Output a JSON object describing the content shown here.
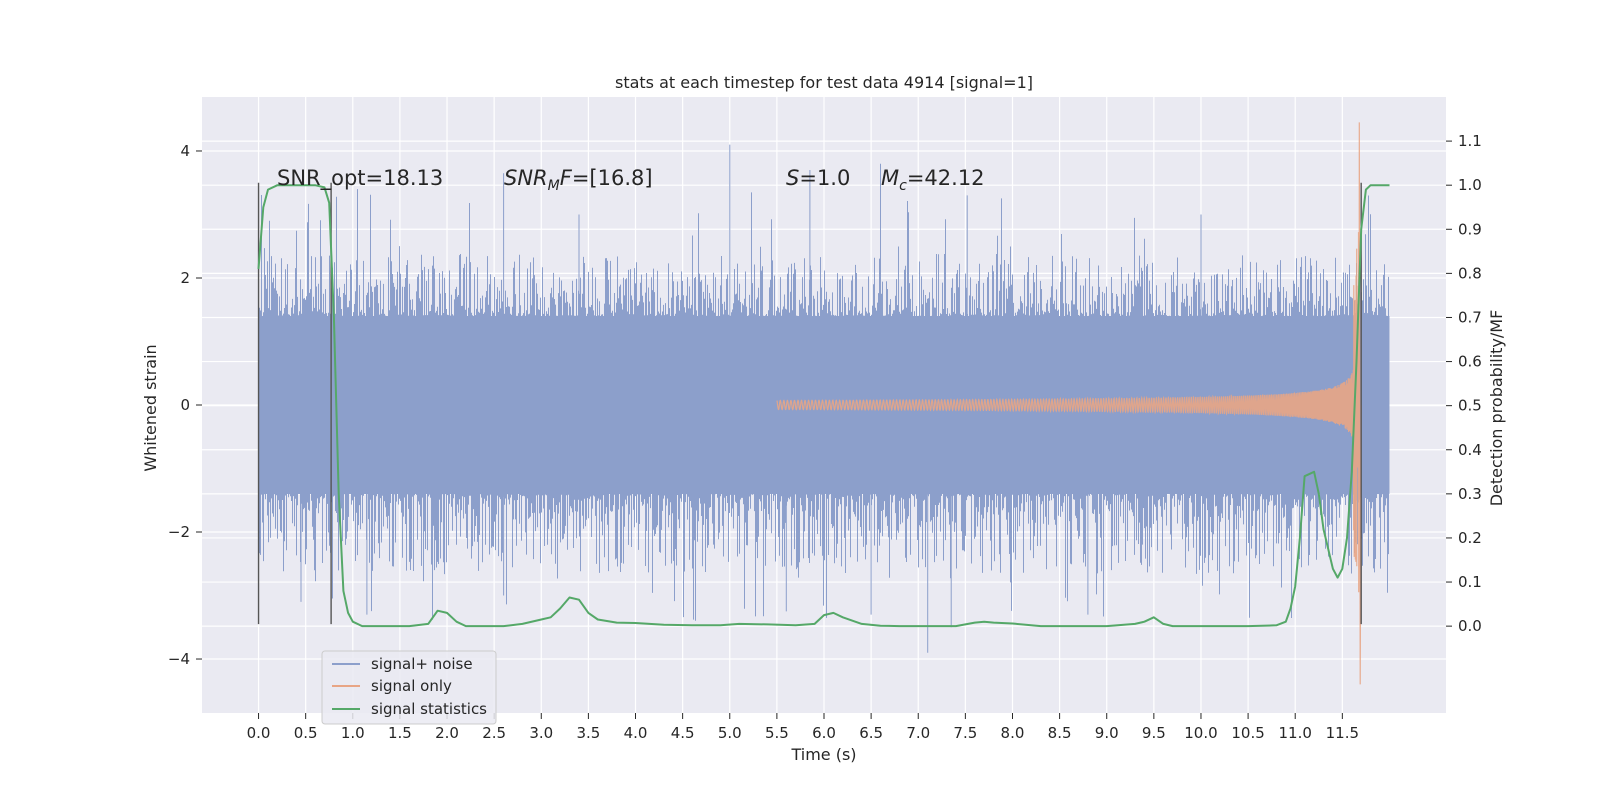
{
  "chart_data": {
    "type": "line",
    "title": "stats at each timestep for test data 4914 [signal=1]",
    "xlabel": "Time (s)",
    "ylabel": "Whitened strain",
    "y2label": "Detection probability/MF",
    "xlim": [
      -0.6,
      12.6
    ],
    "ylim": [
      -4.85,
      4.85
    ],
    "y2lim": [
      -0.197,
      1.2
    ],
    "x_ticks": [
      "0.0",
      "0.5",
      "1.0",
      "1.5",
      "2.0",
      "2.5",
      "3.0",
      "3.5",
      "4.0",
      "4.5",
      "5.0",
      "5.5",
      "6.0",
      "6.5",
      "7.0",
      "7.5",
      "8.0",
      "8.5",
      "9.0",
      "9.5",
      "10.0",
      "10.5",
      "11.0",
      "11.5"
    ],
    "y_ticks": [
      "4",
      "2",
      "0",
      "−2",
      "−4"
    ],
    "y2_ticks": [
      "1.1",
      "1.0",
      "0.9",
      "0.8",
      "0.7",
      "0.6",
      "0.5",
      "0.4",
      "0.3",
      "0.2",
      "0.1",
      "0.0"
    ],
    "grid": true,
    "legend_position": "lower-left",
    "legend": [
      "signal+ noise",
      "signal only",
      "signal statistics"
    ],
    "annotations": {
      "snr_opt": "SNR_opt=18.13",
      "snr_mf": "[16.8]",
      "s_value": "=1.0",
      "mc_value": "=42.12",
      "snr_mf_symbol": "SNR",
      "snr_mf_sub": "M",
      "snr_mf_tail": "F=",
      "s_symbol": "S",
      "mc_symbol": "M",
      "mc_sub": "c"
    },
    "vertical_markers": [
      0.0,
      0.77,
      11.7
    ],
    "colors": {
      "noise": "#8c9fcb",
      "signal": "#dd8452",
      "stats": "#55a868",
      "marker": "#555555",
      "background": "#eaeaf2",
      "grid": "#ffffff"
    },
    "series": [
      {
        "name": "signal+ noise",
        "description": "noisy whitened strain, roughly symmetric around 0",
        "envelope": {
          "x": [
            0.0,
            12.0
          ],
          "upper": 2.1,
          "lower": -2.3,
          "core": 1.4,
          "max": 4.1,
          "min": -3.9
        },
        "t_range": [
          0.0,
          12.0
        ]
      },
      {
        "name": "signal only",
        "description": "chirp growing toward merger",
        "t_range": [
          5.5,
          11.68
        ],
        "merger_time": 11.68,
        "peak": 4.45,
        "min": -4.4
      },
      {
        "name": "signal statistics",
        "axis": "right",
        "x": [
          0.0,
          0.05,
          0.1,
          0.2,
          0.3,
          0.45,
          0.6,
          0.7,
          0.75,
          0.8,
          0.85,
          0.9,
          0.95,
          1.0,
          1.1,
          1.3,
          1.6,
          1.8,
          1.9,
          2.0,
          2.1,
          2.2,
          2.4,
          2.6,
          2.8,
          3.0,
          3.1,
          3.2,
          3.3,
          3.4,
          3.5,
          3.6,
          3.8,
          4.0,
          4.3,
          4.6,
          4.9,
          5.1,
          5.4,
          5.7,
          5.9,
          6.0,
          6.1,
          6.2,
          6.4,
          6.6,
          6.8,
          7.0,
          7.2,
          7.4,
          7.6,
          7.7,
          7.8,
          8.0,
          8.3,
          8.6,
          9.0,
          9.3,
          9.4,
          9.5,
          9.6,
          9.7,
          9.9,
          10.2,
          10.5,
          10.8,
          10.9,
          10.95,
          11.0,
          11.05,
          11.1,
          11.2,
          11.25,
          11.3,
          11.4,
          11.45,
          11.5,
          11.55,
          11.6,
          11.65,
          11.7,
          11.75,
          11.8,
          11.9,
          12.0
        ],
        "y": [
          0.81,
          0.95,
          0.99,
          1.0,
          1.0,
          1.0,
          1.0,
          0.995,
          0.96,
          0.7,
          0.3,
          0.08,
          0.03,
          0.01,
          0.0,
          0.0,
          0.0,
          0.005,
          0.035,
          0.03,
          0.01,
          0.0,
          0.0,
          0.0,
          0.005,
          0.015,
          0.02,
          0.04,
          0.065,
          0.06,
          0.03,
          0.015,
          0.008,
          0.007,
          0.003,
          0.002,
          0.002,
          0.005,
          0.004,
          0.002,
          0.005,
          0.025,
          0.03,
          0.02,
          0.005,
          0.001,
          0.0,
          0.0,
          0.0,
          0.0,
          0.008,
          0.01,
          0.008,
          0.006,
          0.0,
          0.0,
          0.0,
          0.005,
          0.01,
          0.02,
          0.005,
          0.0,
          0.0,
          0.0,
          0.0,
          0.002,
          0.01,
          0.04,
          0.09,
          0.2,
          0.34,
          0.35,
          0.3,
          0.22,
          0.13,
          0.11,
          0.13,
          0.2,
          0.35,
          0.6,
          0.9,
          0.99,
          1.0,
          1.0,
          1.0
        ]
      }
    ]
  }
}
